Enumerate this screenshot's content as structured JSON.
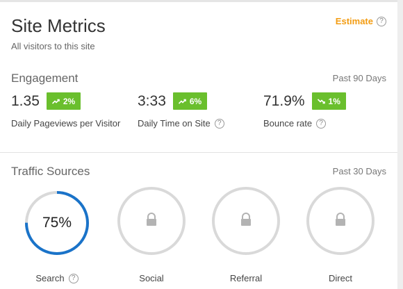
{
  "header": {
    "title": "Site Metrics",
    "subtitle": "All visitors to this site",
    "estimate_label": "Estimate",
    "help_glyph": "?"
  },
  "engagement": {
    "title": "Engagement",
    "range": "Past 90 Days",
    "metrics": [
      {
        "value": "1.35",
        "change": "2%",
        "trend": "up",
        "label": "Daily Pageviews per Visitor",
        "help": false
      },
      {
        "value": "3:33",
        "change": "6%",
        "trend": "up",
        "label": "Daily Time on Site",
        "help": true
      },
      {
        "value": "71.9%",
        "change": "1%",
        "trend": "down",
        "label": "Bounce rate",
        "help": true
      }
    ]
  },
  "traffic": {
    "title": "Traffic Sources",
    "range": "Past 30 Days",
    "sources": [
      {
        "label": "Search",
        "value_text": "75%",
        "percent": 75,
        "locked": false,
        "help": true
      },
      {
        "label": "Social",
        "locked": true,
        "help": false
      },
      {
        "label": "Referral",
        "locked": true,
        "help": false
      },
      {
        "label": "Direct",
        "locked": true,
        "help": false
      }
    ]
  },
  "colors": {
    "accent_orange": "#f39c12",
    "badge_green": "#6abf2d",
    "ring_blue": "#1a73c9",
    "ring_gray": "#d9d9d9"
  }
}
